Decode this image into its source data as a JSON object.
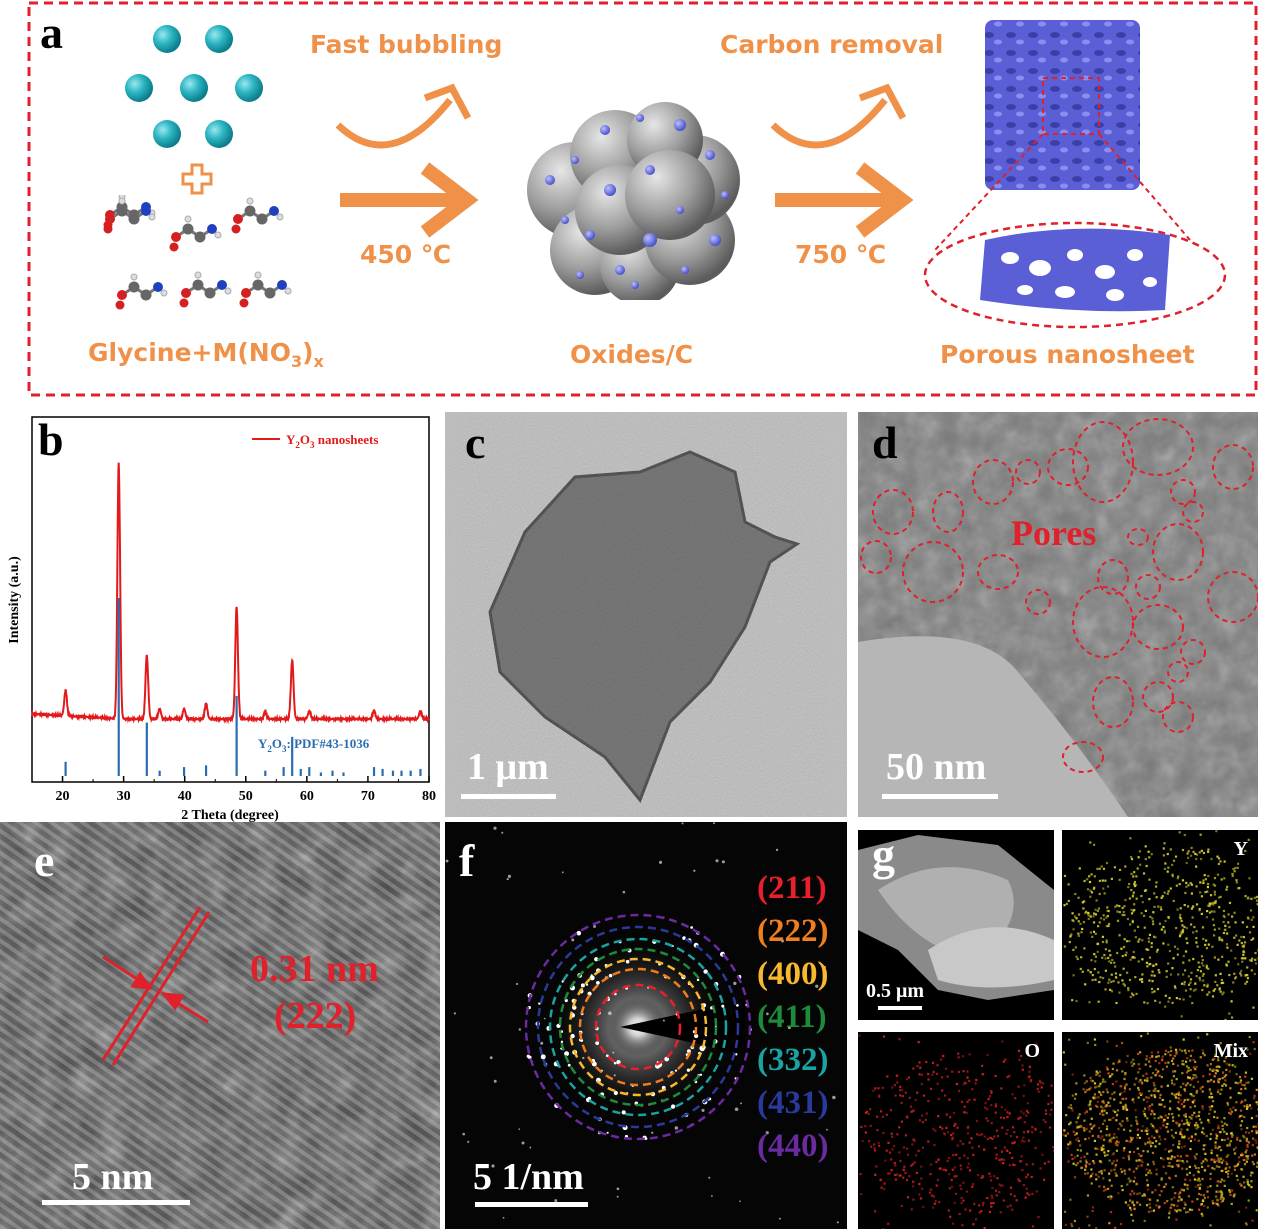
{
  "panels": {
    "a": "a",
    "b": "b",
    "c": "c",
    "d": "d",
    "e": "e",
    "f": "f",
    "g": "g"
  },
  "scheme": {
    "step1_top": "Fast bubbling",
    "step1_temp": "450 ℃",
    "step2_top": "Carbon removal",
    "step2_temp": "750 ℃",
    "label_reactants_pre": "Glycine+M(NO",
    "label_reactants_sub3": "3",
    "label_reactants_post": ")",
    "label_reactants_subx": "x",
    "label_middle": "Oxides/C",
    "label_product": "Porous nanosheet"
  },
  "xrd": {
    "legend_pre": "Y",
    "legend_sub2": "2",
    "legend_mid": "O",
    "legend_sub3": "3",
    "legend_post": " nanosheets",
    "ref_pre": "Y",
    "ref_sub2": "2",
    "ref_mid": "O",
    "ref_sub3": "3",
    "ref_post": ": PDF#43-1036",
    "colors": {
      "measured": "#e31a1c",
      "reference": "#2b6cb0"
    }
  },
  "chart_data": {
    "type": "line",
    "xlabel": "2 Theta (degree)",
    "ylabel": "Intensity (a.u.)",
    "xlim": [
      15,
      80
    ],
    "xticks": [
      20,
      30,
      40,
      50,
      60,
      70,
      80
    ],
    "series": [
      {
        "name": "Y2O3 nanosheets",
        "peaks": [
          [
            20.5,
            0.1
          ],
          [
            29.2,
            1.0
          ],
          [
            33.8,
            0.25
          ],
          [
            35.9,
            0.04
          ],
          [
            39.9,
            0.04
          ],
          [
            43.5,
            0.06
          ],
          [
            48.5,
            0.44
          ],
          [
            53.2,
            0.03
          ],
          [
            57.6,
            0.23
          ],
          [
            60.4,
            0.03
          ],
          [
            71.0,
            0.03
          ],
          [
            78.6,
            0.03
          ]
        ]
      },
      {
        "name": "Y2O3: PDF#43-1036",
        "sticks": [
          [
            20.5,
            0.08
          ],
          [
            29.2,
            1.0
          ],
          [
            33.8,
            0.3
          ],
          [
            35.9,
            0.03
          ],
          [
            39.9,
            0.05
          ],
          [
            43.5,
            0.06
          ],
          [
            48.5,
            0.45
          ],
          [
            53.2,
            0.03
          ],
          [
            56.2,
            0.05
          ],
          [
            57.6,
            0.22
          ],
          [
            59.0,
            0.04
          ],
          [
            60.4,
            0.05
          ],
          [
            62.3,
            0.02
          ],
          [
            64.2,
            0.03
          ],
          [
            66.0,
            0.02
          ],
          [
            71.0,
            0.05
          ],
          [
            72.4,
            0.04
          ],
          [
            74.1,
            0.03
          ],
          [
            75.5,
            0.03
          ],
          [
            77.0,
            0.03
          ],
          [
            78.6,
            0.04
          ]
        ]
      }
    ]
  },
  "tem_c": {
    "scale": "1 μm"
  },
  "tem_d": {
    "scale": "50 nm",
    "annotation": "Pores"
  },
  "hrtem_e": {
    "scale": "5 nm",
    "d_spacing": "0.31 nm",
    "plane": "(222)"
  },
  "saed_f": {
    "scale": "5 1/nm",
    "rings": [
      {
        "label": "(211)",
        "color": "#e8202a"
      },
      {
        "label": "(222)",
        "color": "#f07d1e"
      },
      {
        "label": "(400)",
        "color": "#f5b82e"
      },
      {
        "label": "(411)",
        "color": "#1e8a3c"
      },
      {
        "label": "(332)",
        "color": "#1aa3a3"
      },
      {
        "label": "(431)",
        "color": "#2a3a9c"
      },
      {
        "label": "(440)",
        "color": "#6a2aa0"
      }
    ]
  },
  "mapping_g": {
    "scale": "0.5 μm",
    "map_y": "Y",
    "map_o": "O",
    "map_mix": "Mix"
  }
}
